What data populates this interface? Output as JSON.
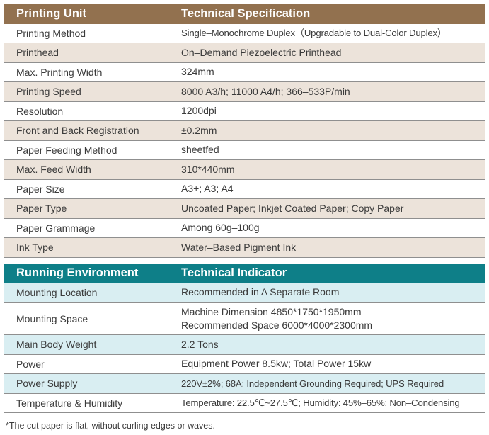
{
  "colors": {
    "brown_header": "#92714f",
    "brown_stripe": "#ece3da",
    "teal_header": "#0e7f88",
    "teal_stripe": "#d9eef2"
  },
  "table1": {
    "header": [
      "Printing Unit",
      "Technical Specification"
    ],
    "rows": [
      [
        "Printing Method",
        "Single–Monochrome Duplex（Upgradable to Dual-Color Duplex）"
      ],
      [
        "Printhead",
        "On–Demand Piezoelectric Printhead"
      ],
      [
        "Max. Printing Width",
        "324mm"
      ],
      [
        "Printing Speed",
        "8000 A3/h; 11000 A4/h; 366–533P/min"
      ],
      [
        "Resolution",
        "1200dpi"
      ],
      [
        "Front and Back Registration",
        "±0.2mm"
      ],
      [
        "Paper Feeding Method",
        "sheetfed"
      ],
      [
        "Max. Feed Width",
        "310*440mm"
      ],
      [
        "Paper Size",
        "A3+; A3; A4"
      ],
      [
        "Paper Type",
        "Uncoated Paper; Inkjet Coated Paper; Copy Paper"
      ],
      [
        "Paper Grammage",
        "Among 60g–100g"
      ],
      [
        "Ink Type",
        "Water–Based Pigment Ink"
      ]
    ]
  },
  "table2": {
    "header": [
      "Running Environment",
      "Technical Indicator"
    ],
    "rows": [
      [
        "Mounting Location",
        "Recommended in A Separate Room"
      ],
      [
        "Mounting Space",
        "Machine Dimension 4850*1750*1950mm",
        "Recommended Space 6000*4000*2300mm"
      ],
      [
        "Main Body Weight",
        "2.2 Tons"
      ],
      [
        "Power",
        "Equipment Power 8.5kw; Total Power 15kw"
      ],
      [
        "Power Supply",
        "220V±2%; 68A; Independent Grounding Required; UPS Required"
      ],
      [
        "Temperature & Humidity",
        "Temperature: 22.5℃~27.5℃; Humidity: 45%–65%; Non–Condensing"
      ]
    ]
  },
  "footnote": "*The cut paper is flat, without curling edges or waves."
}
